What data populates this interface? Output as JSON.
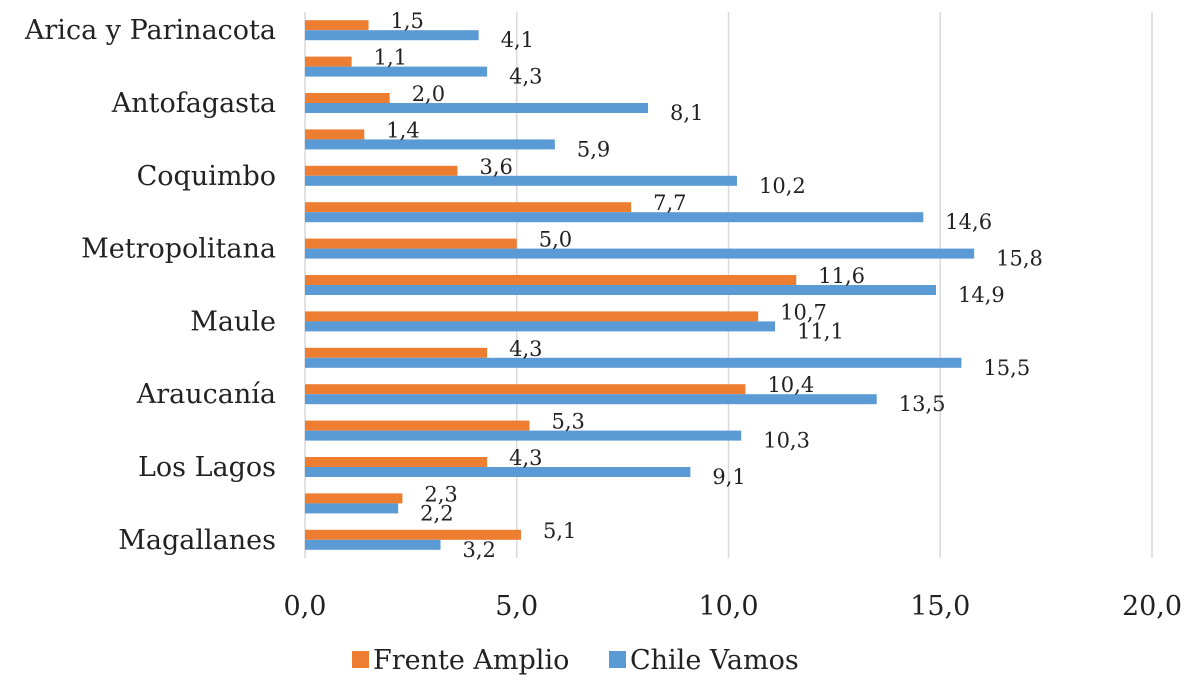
{
  "chart_data": {
    "type": "bar",
    "orientation": "horizontal",
    "categories": [
      "Arica y Parinacota",
      "",
      "Antofagasta",
      "",
      "Coquimbo",
      "",
      "Metropolitana",
      "",
      "Maule",
      "",
      "Araucanía",
      "",
      "Los Lagos",
      "",
      "Magallanes"
    ],
    "series": [
      {
        "name": "Frente Amplio",
        "color": "#ED7D31",
        "values": [
          1.5,
          1.1,
          2.0,
          1.4,
          3.6,
          7.7,
          5.0,
          11.6,
          10.7,
          4.3,
          10.4,
          5.3,
          4.3,
          2.3,
          5.1
        ],
        "labels": [
          "1,5",
          "1,1",
          "2,0",
          "1,4",
          "3,6",
          "7,7",
          "5,0",
          "11,6",
          "10,7",
          "4,3",
          "10,4",
          "5,3",
          "4,3",
          "2,3",
          "5,1"
        ]
      },
      {
        "name": "Chile Vamos",
        "color": "#5B9BD5",
        "values": [
          4.1,
          4.3,
          8.1,
          5.9,
          10.2,
          14.6,
          15.8,
          14.9,
          11.1,
          15.5,
          13.5,
          10.3,
          9.1,
          2.2,
          3.2
        ],
        "labels": [
          "4,1",
          "4,3",
          "8,1",
          "5,9",
          "10,2",
          "14,6",
          "15,8",
          "14,9",
          "11,1",
          "15,5",
          "13,5",
          "10,3",
          "9,1",
          "2,2",
          "3,2"
        ]
      }
    ],
    "xlim": [
      0,
      20
    ],
    "x_ticks": [
      0,
      5,
      10,
      15,
      20
    ],
    "x_tick_labels": [
      "0,0",
      "5,0",
      "10,0",
      "15,0",
      "20,0"
    ],
    "grid": true,
    "legend_position": "bottom",
    "title": "",
    "xlabel": "",
    "ylabel": ""
  }
}
